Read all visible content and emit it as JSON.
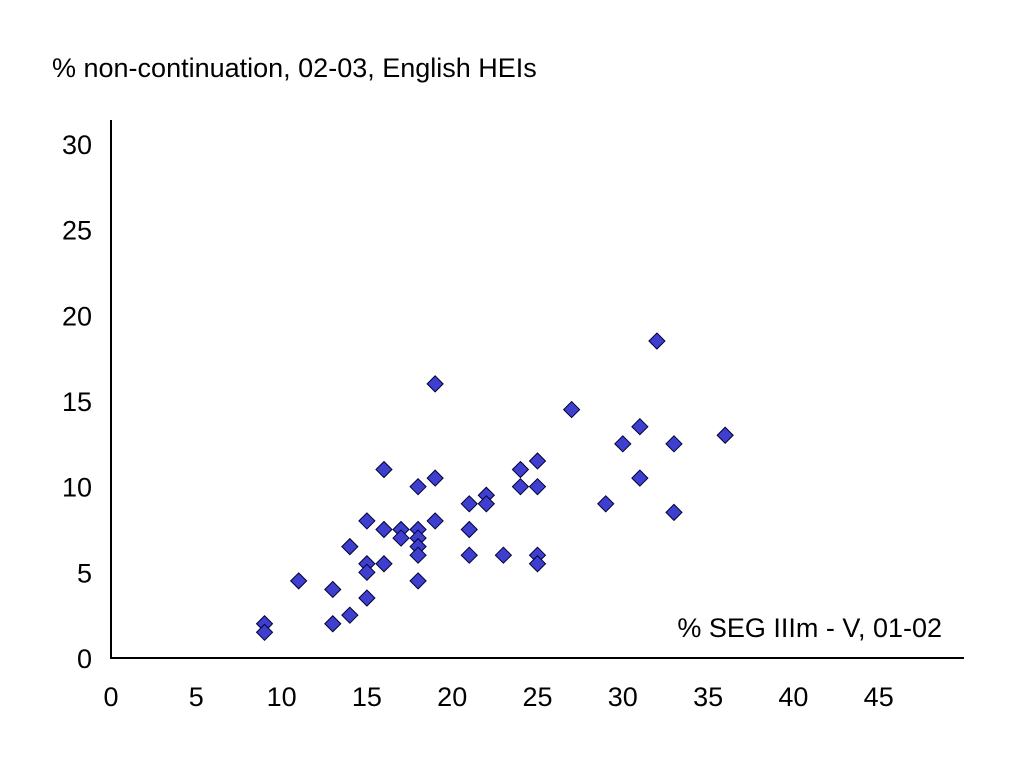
{
  "chart_data": {
    "type": "scatter",
    "title": "",
    "ylabel": "% non-continuation, 02-03, English HEIs",
    "xlabel": "% SEG IIIm - V, 01-02",
    "xlim": [
      0,
      50
    ],
    "ylim": [
      0,
      30
    ],
    "x_ticks": [
      0,
      5,
      10,
      15,
      20,
      25,
      30,
      35,
      40,
      45
    ],
    "y_ticks": [
      0,
      5,
      10,
      15,
      20,
      25,
      30
    ],
    "grid": false,
    "legend": "none",
    "marker": "diamond",
    "colors": {
      "marker_fill": "#3f3fcf",
      "marker_stroke": "#000033",
      "axis": "#000000"
    },
    "series": [
      {
        "values": [
          [
            9,
            2
          ],
          [
            9,
            1.5
          ],
          [
            11,
            4.5
          ],
          [
            13,
            4
          ],
          [
            13,
            2
          ],
          [
            14,
            6.5
          ],
          [
            14,
            2.5
          ],
          [
            15,
            8
          ],
          [
            15,
            5.5
          ],
          [
            15,
            5
          ],
          [
            15,
            3.5
          ],
          [
            16,
            11
          ],
          [
            16,
            7.5
          ],
          [
            16,
            5.5
          ],
          [
            17,
            7.5
          ],
          [
            17,
            7
          ],
          [
            18,
            10
          ],
          [
            18,
            7.5
          ],
          [
            18,
            7
          ],
          [
            18,
            6.5
          ],
          [
            18,
            6
          ],
          [
            18,
            4.5
          ],
          [
            19,
            16
          ],
          [
            19,
            10.5
          ],
          [
            19,
            8
          ],
          [
            21,
            9
          ],
          [
            21,
            7.5
          ],
          [
            21,
            6
          ],
          [
            22,
            9.5
          ],
          [
            22,
            9
          ],
          [
            23,
            6
          ],
          [
            24,
            11
          ],
          [
            24,
            10
          ],
          [
            25,
            11.5
          ],
          [
            25,
            10
          ],
          [
            25,
            6
          ],
          [
            25,
            5.5
          ],
          [
            27,
            14.5
          ],
          [
            29,
            9
          ],
          [
            30,
            12.5
          ],
          [
            31,
            13.5
          ],
          [
            31,
            10.5
          ],
          [
            32,
            18.5
          ],
          [
            33,
            12.5
          ],
          [
            33,
            8.5
          ],
          [
            36,
            13
          ]
        ]
      }
    ]
  }
}
